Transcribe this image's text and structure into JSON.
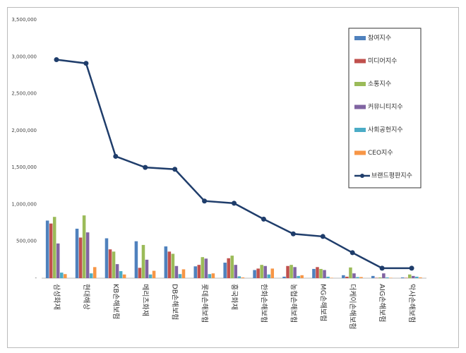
{
  "chart_data": {
    "type": "bar",
    "categories": [
      "삼성화재",
      "현대해상",
      "KB손해보험",
      "메리츠화재",
      "DB손해보험",
      "롯데손해보험",
      "흥국화재",
      "한화손해보험",
      "농협손해보험",
      "MG손해보험",
      "더케이손해보험",
      "AIG손해보험",
      "악사손해보험"
    ],
    "series": [
      {
        "name": "참여지수",
        "color": "#4f81bd",
        "values": [
          780000,
          670000,
          540000,
          500000,
          430000,
          160000,
          210000,
          110000,
          20000,
          125000,
          40000,
          30000,
          10000
        ]
      },
      {
        "name": "미디어지수",
        "color": "#c0504d",
        "values": [
          740000,
          550000,
          390000,
          140000,
          360000,
          180000,
          270000,
          130000,
          165000,
          150000,
          20000,
          5000,
          5000
        ]
      },
      {
        "name": "소통지수",
        "color": "#9bbb59",
        "values": [
          830000,
          850000,
          360000,
          450000,
          330000,
          285000,
          305000,
          180000,
          180000,
          125000,
          145000,
          10000,
          50000
        ]
      },
      {
        "name": "커뮤니티지수",
        "color": "#8064a2",
        "values": [
          470000,
          620000,
          190000,
          250000,
          165000,
          265000,
          180000,
          165000,
          150000,
          110000,
          65000,
          65000,
          30000
        ]
      },
      {
        "name": "사회공헌지수",
        "color": "#4bacc6",
        "values": [
          75000,
          65000,
          95000,
          50000,
          55000,
          55000,
          25000,
          50000,
          30000,
          20000,
          15000,
          10000,
          20000
        ]
      },
      {
        "name": "CEO지수",
        "color": "#f79646",
        "values": [
          55000,
          150000,
          50000,
          100000,
          120000,
          65000,
          10000,
          130000,
          40000,
          5000,
          15000,
          5000,
          10000
        ]
      },
      {
        "name": "브랜드평판지수",
        "color": "#1f3d6b",
        "type": "line",
        "values": [
          2960000,
          2910000,
          1650000,
          1500000,
          1475000,
          1045000,
          1015000,
          800000,
          600000,
          565000,
          345000,
          135000,
          135000
        ]
      }
    ],
    "ylim": [
      0,
      3500000
    ],
    "yticks": [
      {
        "value": 0,
        "label": "-"
      },
      {
        "value": 500000,
        "label": "500,000"
      },
      {
        "value": 1000000,
        "label": "1,000,000"
      },
      {
        "value": 1500000,
        "label": "1,500,000"
      },
      {
        "value": 2000000,
        "label": "2,000,000"
      },
      {
        "value": 2500000,
        "label": "2,500,000"
      },
      {
        "value": 3000000,
        "label": "3,000,000"
      },
      {
        "value": 3500000,
        "label": "3,500,000"
      }
    ],
    "grid": false,
    "legend": "upper right"
  }
}
